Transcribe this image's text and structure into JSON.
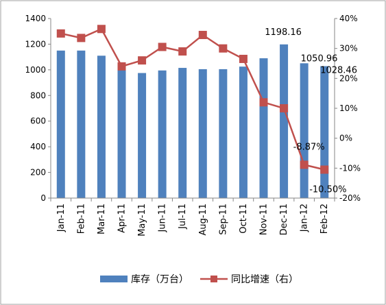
{
  "chart_data": {
    "type": "bar+line",
    "categories": [
      "Jan-11",
      "Feb-11",
      "Mar-11",
      "Apr-11",
      "May-11",
      "Jun-11",
      "Jul-11",
      "Aug-11",
      "Sep-11",
      "Oct-11",
      "Nov-11",
      "Dec-11",
      "Jan-12",
      "Feb-12"
    ],
    "series": [
      {
        "name": "库存（万台）",
        "type": "bar",
        "axis": "left",
        "color": "#4f81bd",
        "values": [
          1150,
          1150,
          1110,
          1020,
          975,
          995,
          1015,
          1005,
          1005,
          1025,
          1090,
          1198.16,
          1050.96,
          1028.46
        ]
      },
      {
        "name": "同比增速（右）",
        "type": "line",
        "axis": "right",
        "color": "#c0504d",
        "values": [
          35,
          33.5,
          36.5,
          24,
          26,
          30.5,
          29,
          34.5,
          30,
          26.5,
          12,
          10,
          -8.87,
          -10.5
        ]
      }
    ],
    "left_axis": {
      "ylim": [
        0,
        1400
      ],
      "ticks": [
        "0",
        "200",
        "400",
        "600",
        "800",
        "1000",
        "1200",
        "1400"
      ]
    },
    "right_axis": {
      "ylim": [
        -20,
        40
      ],
      "ticks": [
        "-20%",
        "-10%",
        "0%",
        "10%",
        "20%",
        "30%",
        "40%"
      ]
    },
    "data_labels": [
      {
        "series": 0,
        "index": 11,
        "text": "1198.16"
      },
      {
        "series": 0,
        "index": 12,
        "text": "1050.96"
      },
      {
        "series": 0,
        "index": 13,
        "text": "1028.46"
      },
      {
        "series": 1,
        "index": 12,
        "text": "-8.87%"
      },
      {
        "series": 1,
        "index": 13,
        "text": "-10.50%"
      }
    ],
    "legend_position": "bottom",
    "grid": false
  }
}
